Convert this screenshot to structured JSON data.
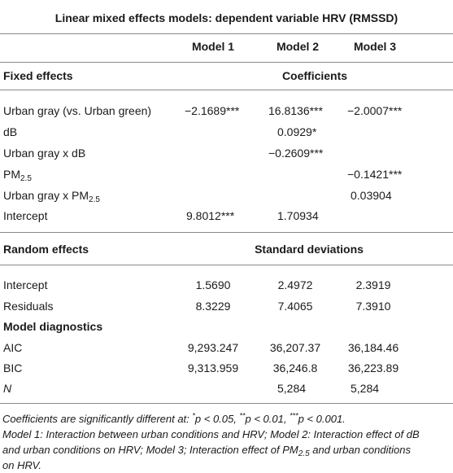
{
  "title": "Linear mixed effects models: dependent variable HRV (RMSSD)",
  "columns": [
    "Model 1",
    "Model 2",
    "Model 3"
  ],
  "fixed": {
    "heading": "Fixed effects",
    "group_label": "Coefficients",
    "rows": [
      {
        "label": "Urban gray (vs. Urban green)",
        "m1": "−2.1689***",
        "m2": "16.8136***",
        "m3": "−2.0007***"
      },
      {
        "label": "dB",
        "m1": "",
        "m2": "0.0929*",
        "m3": ""
      },
      {
        "label": "Urban gray x dB",
        "m1": "",
        "m2": "−0.2609***",
        "m3": ""
      },
      {
        "label_main": "PM",
        "label_sub": "2.5",
        "m1": "",
        "m2": "",
        "m3": "−0.1421***"
      },
      {
        "label_main": "Urban gray x PM",
        "label_sub": "2.5",
        "m1": "",
        "m2": "",
        "m3": "0.03904"
      },
      {
        "label": "Intercept",
        "m1": "9.8012***",
        "m2": "1.70934",
        "m3": ""
      }
    ]
  },
  "random": {
    "heading": "Random effects",
    "group_label": "Standard deviations",
    "rows": [
      {
        "label": "Intercept",
        "m1": "1.5690",
        "m2": "2.4972",
        "m3": "2.3919"
      },
      {
        "label": "Residuals",
        "m1": "8.3229",
        "m2": "7.4065",
        "m3": "7.3910"
      }
    ]
  },
  "diagnostics": {
    "heading": "Model diagnostics",
    "rows": [
      {
        "label": "AIC",
        "m1": "9,293.247",
        "m2": "36,207.37",
        "m3": "36,184.46"
      },
      {
        "label": "BIC",
        "m1": "9,313.959",
        "m2": "36,246.8",
        "m3": "36,223.89"
      },
      {
        "label": "N",
        "m1": "",
        "m2": "5,284",
        "m3": "5,284"
      }
    ]
  },
  "footnotes": {
    "sig_prefix": "Coefficients are significantly different at: ",
    "sig_1_mark": "*",
    "sig_1_text": "p < 0.05, ",
    "sig_2_mark": "**",
    "sig_2_text": "p < 0.01, ",
    "sig_3_mark": "***",
    "sig_3_text": "p < 0.001.",
    "models_a": "Model 1: Interaction between urban conditions and HRV; Model 2: Interaction effect of dB",
    "models_b": "and urban conditions on HRV; Model 3; Interaction effect of PM",
    "models_b_sub": "2.5",
    "models_b_tail": " and urban conditions",
    "models_c": "on HRV."
  }
}
